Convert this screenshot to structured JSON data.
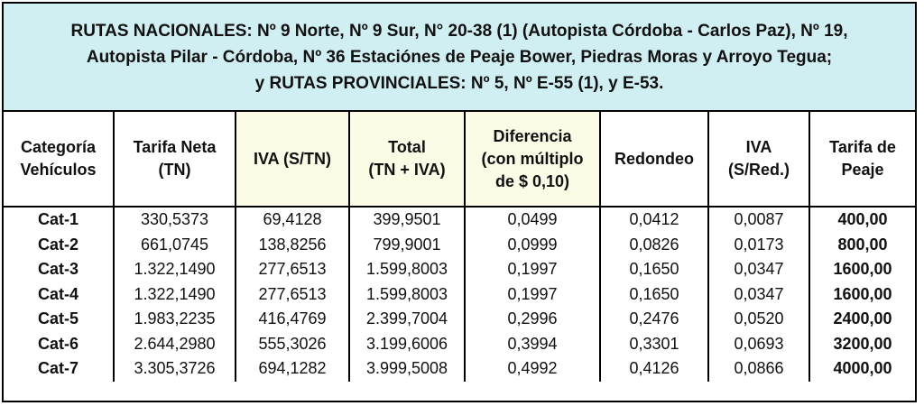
{
  "title_lines": [
    "RUTAS NACIONALES: Nº 9 Norte, Nº 9 Sur, N° 20-38 (1) (Autopista Córdoba - Carlos Paz), Nº 19,",
    "Autopista Pilar - Córdoba, Nº 36 Estaciónes de Peaje Bower, Piedras Moras y Arroyo Tegua;",
    "y RUTAS PROVINCIALES: Nº 5, Nº E-55 (1), y E-53."
  ],
  "headers": [
    [
      "Categoría",
      "Vehículos"
    ],
    [
      "Tarifa  Neta",
      "(TN)"
    ],
    [
      "IVA (S/TN)"
    ],
    [
      "Total",
      "(TN + IVA)"
    ],
    [
      "Diferencia",
      "(con múltiplo",
      "de $ 0,10)"
    ],
    [
      "Redondeo"
    ],
    [
      "IVA",
      "(S/Red.)"
    ],
    [
      "Tarifa  de",
      "Peaje"
    ]
  ],
  "rows": [
    [
      "Cat-1",
      "330,5373",
      "69,4128",
      "399,9501",
      "0,0499",
      "0,0412",
      "0,0087",
      "400,00"
    ],
    [
      "Cat-2",
      "661,0745",
      "138,8256",
      "799,9001",
      "0,0999",
      "0,0826",
      "0,0173",
      "800,00"
    ],
    [
      "Cat-3",
      "1.322,1490",
      "277,6513",
      "1.599,8003",
      "0,1997",
      "0,1650",
      "0,0347",
      "1600,00"
    ],
    [
      "Cat-4",
      "1.322,1490",
      "277,6513",
      "1.599,8003",
      "0,1997",
      "0,1650",
      "0,0347",
      "1600,00"
    ],
    [
      "Cat-5",
      "1.983,2235",
      "416,4769",
      "2.399,7004",
      "0,2996",
      "0,2476",
      "0,0520",
      "2400,00"
    ],
    [
      "Cat-6",
      "2.644,2980",
      "555,3026",
      "3.199,6006",
      "0,3994",
      "0,3301",
      "0,0693",
      "3200,00"
    ],
    [
      "Cat-7",
      "3.305,3726",
      "694,1282",
      "3.999,5008",
      "0,4992",
      "0,4126",
      "0,0866",
      "4000,00"
    ]
  ]
}
